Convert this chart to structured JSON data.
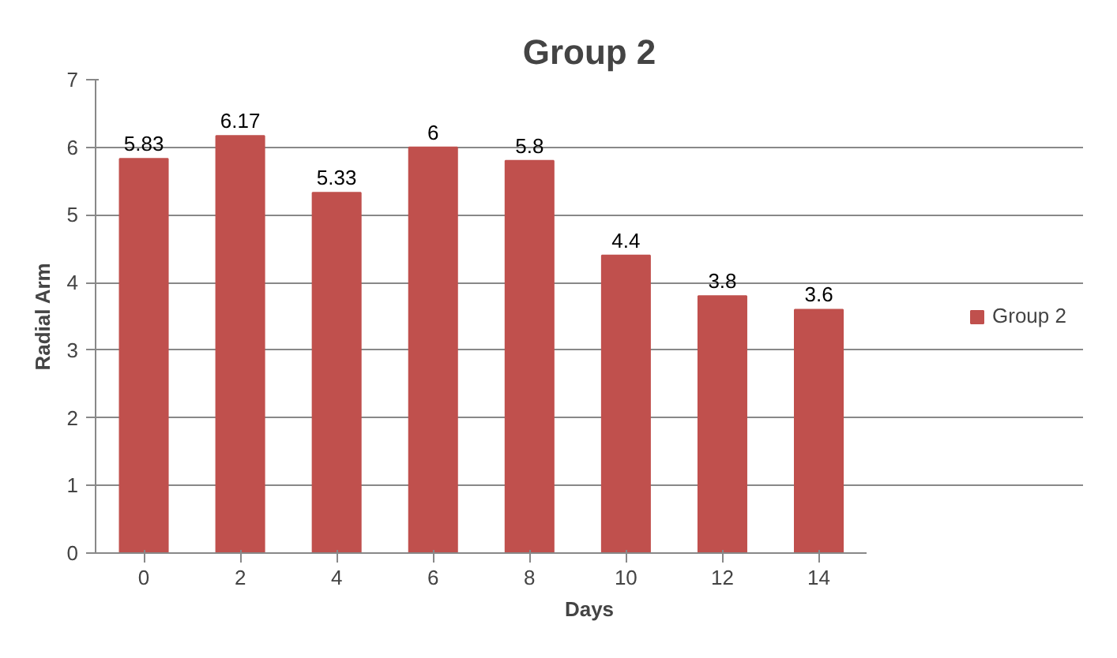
{
  "chart_data": {
    "type": "bar",
    "title": "Group 2",
    "xlabel": "Days",
    "ylabel": "Radial Arm",
    "categories": [
      "0",
      "2",
      "4",
      "6",
      "8",
      "10",
      "12",
      "14"
    ],
    "series": [
      {
        "name": "Group 2",
        "color": "#c0504d",
        "values": [
          5.83,
          6.17,
          5.33,
          6,
          5.8,
          4.4,
          3.8,
          3.6
        ]
      }
    ],
    "ylim": [
      0,
      7
    ],
    "yticks": [
      0,
      1,
      2,
      3,
      4,
      5,
      6,
      7
    ],
    "grid": "y",
    "legend": "right",
    "data_labels": true
  }
}
